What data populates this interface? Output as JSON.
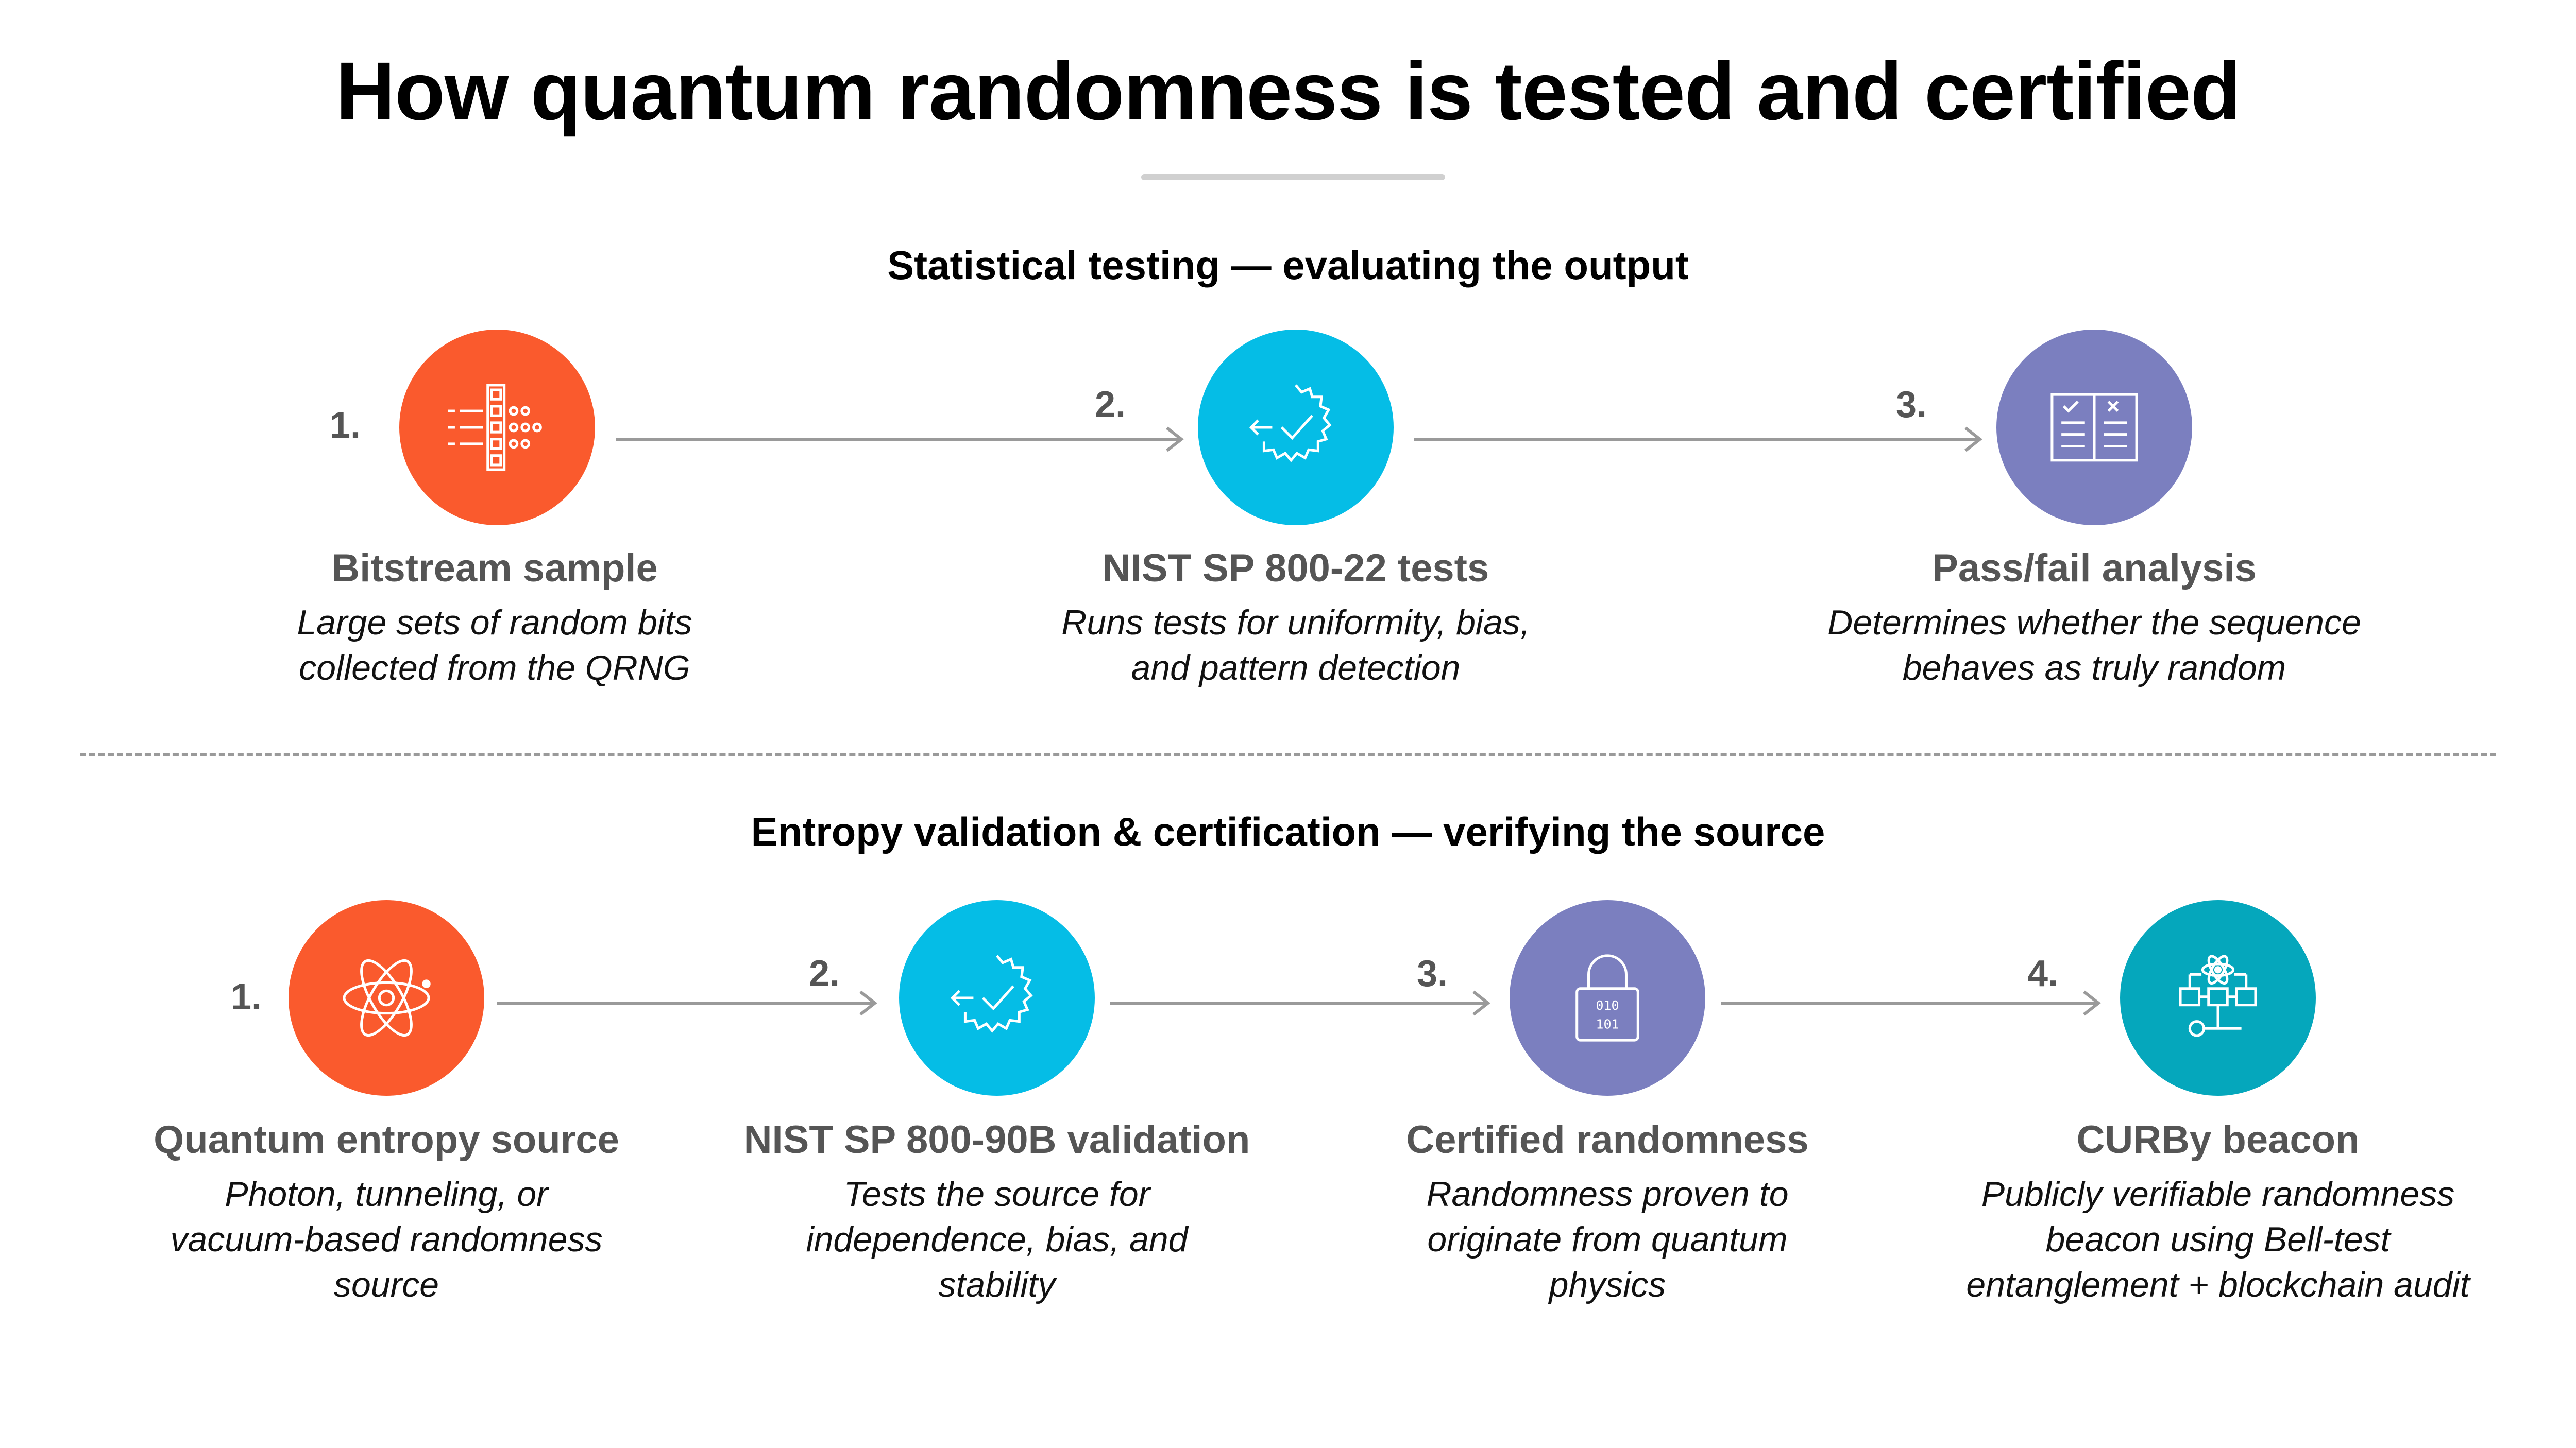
{
  "title": "How quantum randomness is tested and certified",
  "colors": {
    "orange": "#fa5a2d",
    "cyan": "#05bde6",
    "purple": "#7b7fbf",
    "teal": "#05a7bc",
    "arrow": "#9a9a9a"
  },
  "section1": {
    "title": "Statistical testing — evaluating the output",
    "steps": [
      {
        "num": "1.",
        "icon": "bitstream-icon",
        "label": "Bitstream sample",
        "desc_line1": "Large sets of random bits",
        "desc_line2": "collected from the QRNG"
      },
      {
        "num": "2.",
        "icon": "gear-check-icon",
        "label": "NIST SP 800-22 tests",
        "desc_line1": "Runs tests for uniformity, bias,",
        "desc_line2": "and pattern detection"
      },
      {
        "num": "3.",
        "icon": "checklist-icon",
        "label": "Pass/fail analysis",
        "desc_line1": "Determines whether the sequence",
        "desc_line2": "behaves as truly random"
      }
    ]
  },
  "section2": {
    "title": "Entropy validation & certification — verifying the source",
    "steps": [
      {
        "num": "1.",
        "icon": "atom-icon",
        "label": "Quantum entropy source",
        "desc_line1": "Photon, tunneling, or",
        "desc_line2": "vacuum-based randomness",
        "desc_line3": "source"
      },
      {
        "num": "2.",
        "icon": "gear-check-icon",
        "label": "NIST SP 800-90B validation",
        "desc_line1": "Tests the source for",
        "desc_line2": "independence, bias, and",
        "desc_line3": "stability"
      },
      {
        "num": "3.",
        "icon": "binary-lock-icon",
        "label": "Certified randomness",
        "desc_line1": "Randomness proven to",
        "desc_line2": "originate from quantum",
        "desc_line3": "physics"
      },
      {
        "num": "4.",
        "icon": "atom-network-icon",
        "label": "CURBy beacon",
        "desc_line1": "Publicly verifiable randomness",
        "desc_line2": "beacon using Bell-test",
        "desc_line3": "entanglement + blockchain audit"
      }
    ]
  }
}
